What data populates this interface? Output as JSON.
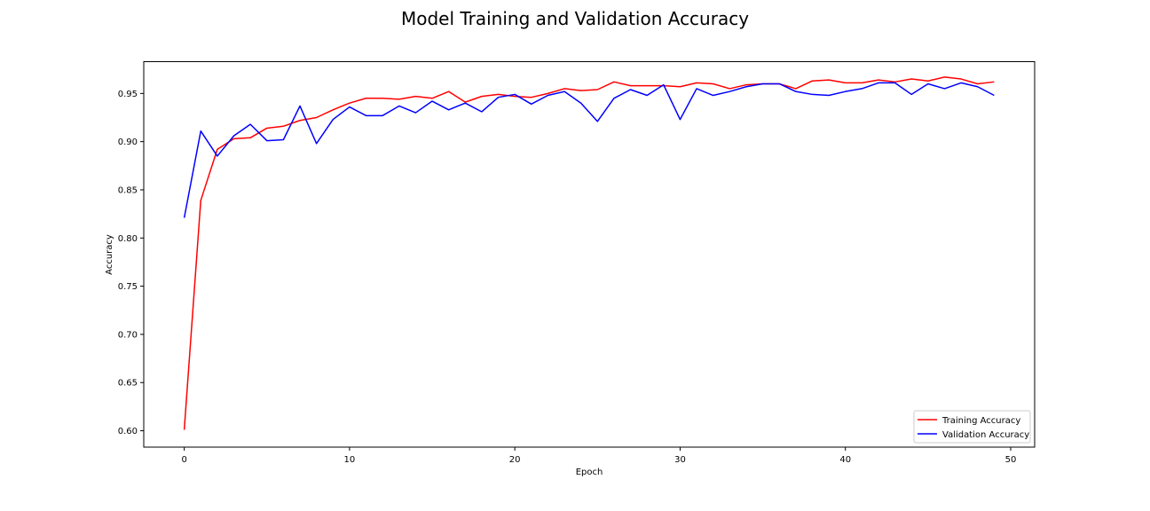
{
  "chart_data": {
    "type": "line",
    "title": "Model Training and Validation Accuracy",
    "xlabel": "Epoch",
    "ylabel": "Accuracy",
    "xlim": [
      -2.45,
      51.45
    ],
    "ylim": [
      0.583,
      0.983
    ],
    "xticks": [
      0,
      10,
      20,
      30,
      40,
      50
    ],
    "yticks": [
      0.6,
      0.65,
      0.7,
      0.75,
      0.8,
      0.85,
      0.9,
      0.95
    ],
    "grid": false,
    "legend_position": "lower right",
    "x": [
      0,
      1,
      2,
      3,
      4,
      5,
      6,
      7,
      8,
      9,
      10,
      11,
      12,
      13,
      14,
      15,
      16,
      17,
      18,
      19,
      20,
      21,
      22,
      23,
      24,
      25,
      26,
      27,
      28,
      29,
      30,
      31,
      32,
      33,
      34,
      35,
      36,
      37,
      38,
      39,
      40,
      41,
      42,
      43,
      44,
      45,
      46,
      47,
      48,
      49
    ],
    "series": [
      {
        "name": "Training Accuracy",
        "color": "#ff0000",
        "values": [
          0.601,
          0.839,
          0.892,
          0.903,
          0.904,
          0.914,
          0.916,
          0.922,
          0.925,
          0.933,
          0.94,
          0.945,
          0.945,
          0.944,
          0.947,
          0.945,
          0.952,
          0.941,
          0.947,
          0.949,
          0.947,
          0.946,
          0.95,
          0.955,
          0.953,
          0.954,
          0.962,
          0.958,
          0.958,
          0.958,
          0.957,
          0.961,
          0.96,
          0.955,
          0.959,
          0.96,
          0.96,
          0.955,
          0.963,
          0.964,
          0.961,
          0.961,
          0.964,
          0.962,
          0.965,
          0.963,
          0.967,
          0.965,
          0.96,
          0.962
        ]
      },
      {
        "name": "Validation Accuracy",
        "color": "#0000ff",
        "values": [
          0.821,
          0.911,
          0.885,
          0.906,
          0.918,
          0.901,
          0.902,
          0.937,
          0.898,
          0.923,
          0.936,
          0.927,
          0.927,
          0.937,
          0.93,
          0.942,
          0.933,
          0.94,
          0.931,
          0.946,
          0.949,
          0.939,
          0.948,
          0.952,
          0.94,
          0.921,
          0.945,
          0.954,
          0.948,
          0.959,
          0.923,
          0.955,
          0.948,
          0.952,
          0.957,
          0.96,
          0.96,
          0.952,
          0.949,
          0.948,
          0.952,
          0.955,
          0.961,
          0.961,
          0.949,
          0.96,
          0.955,
          0.961,
          0.957,
          0.948
        ]
      }
    ]
  }
}
